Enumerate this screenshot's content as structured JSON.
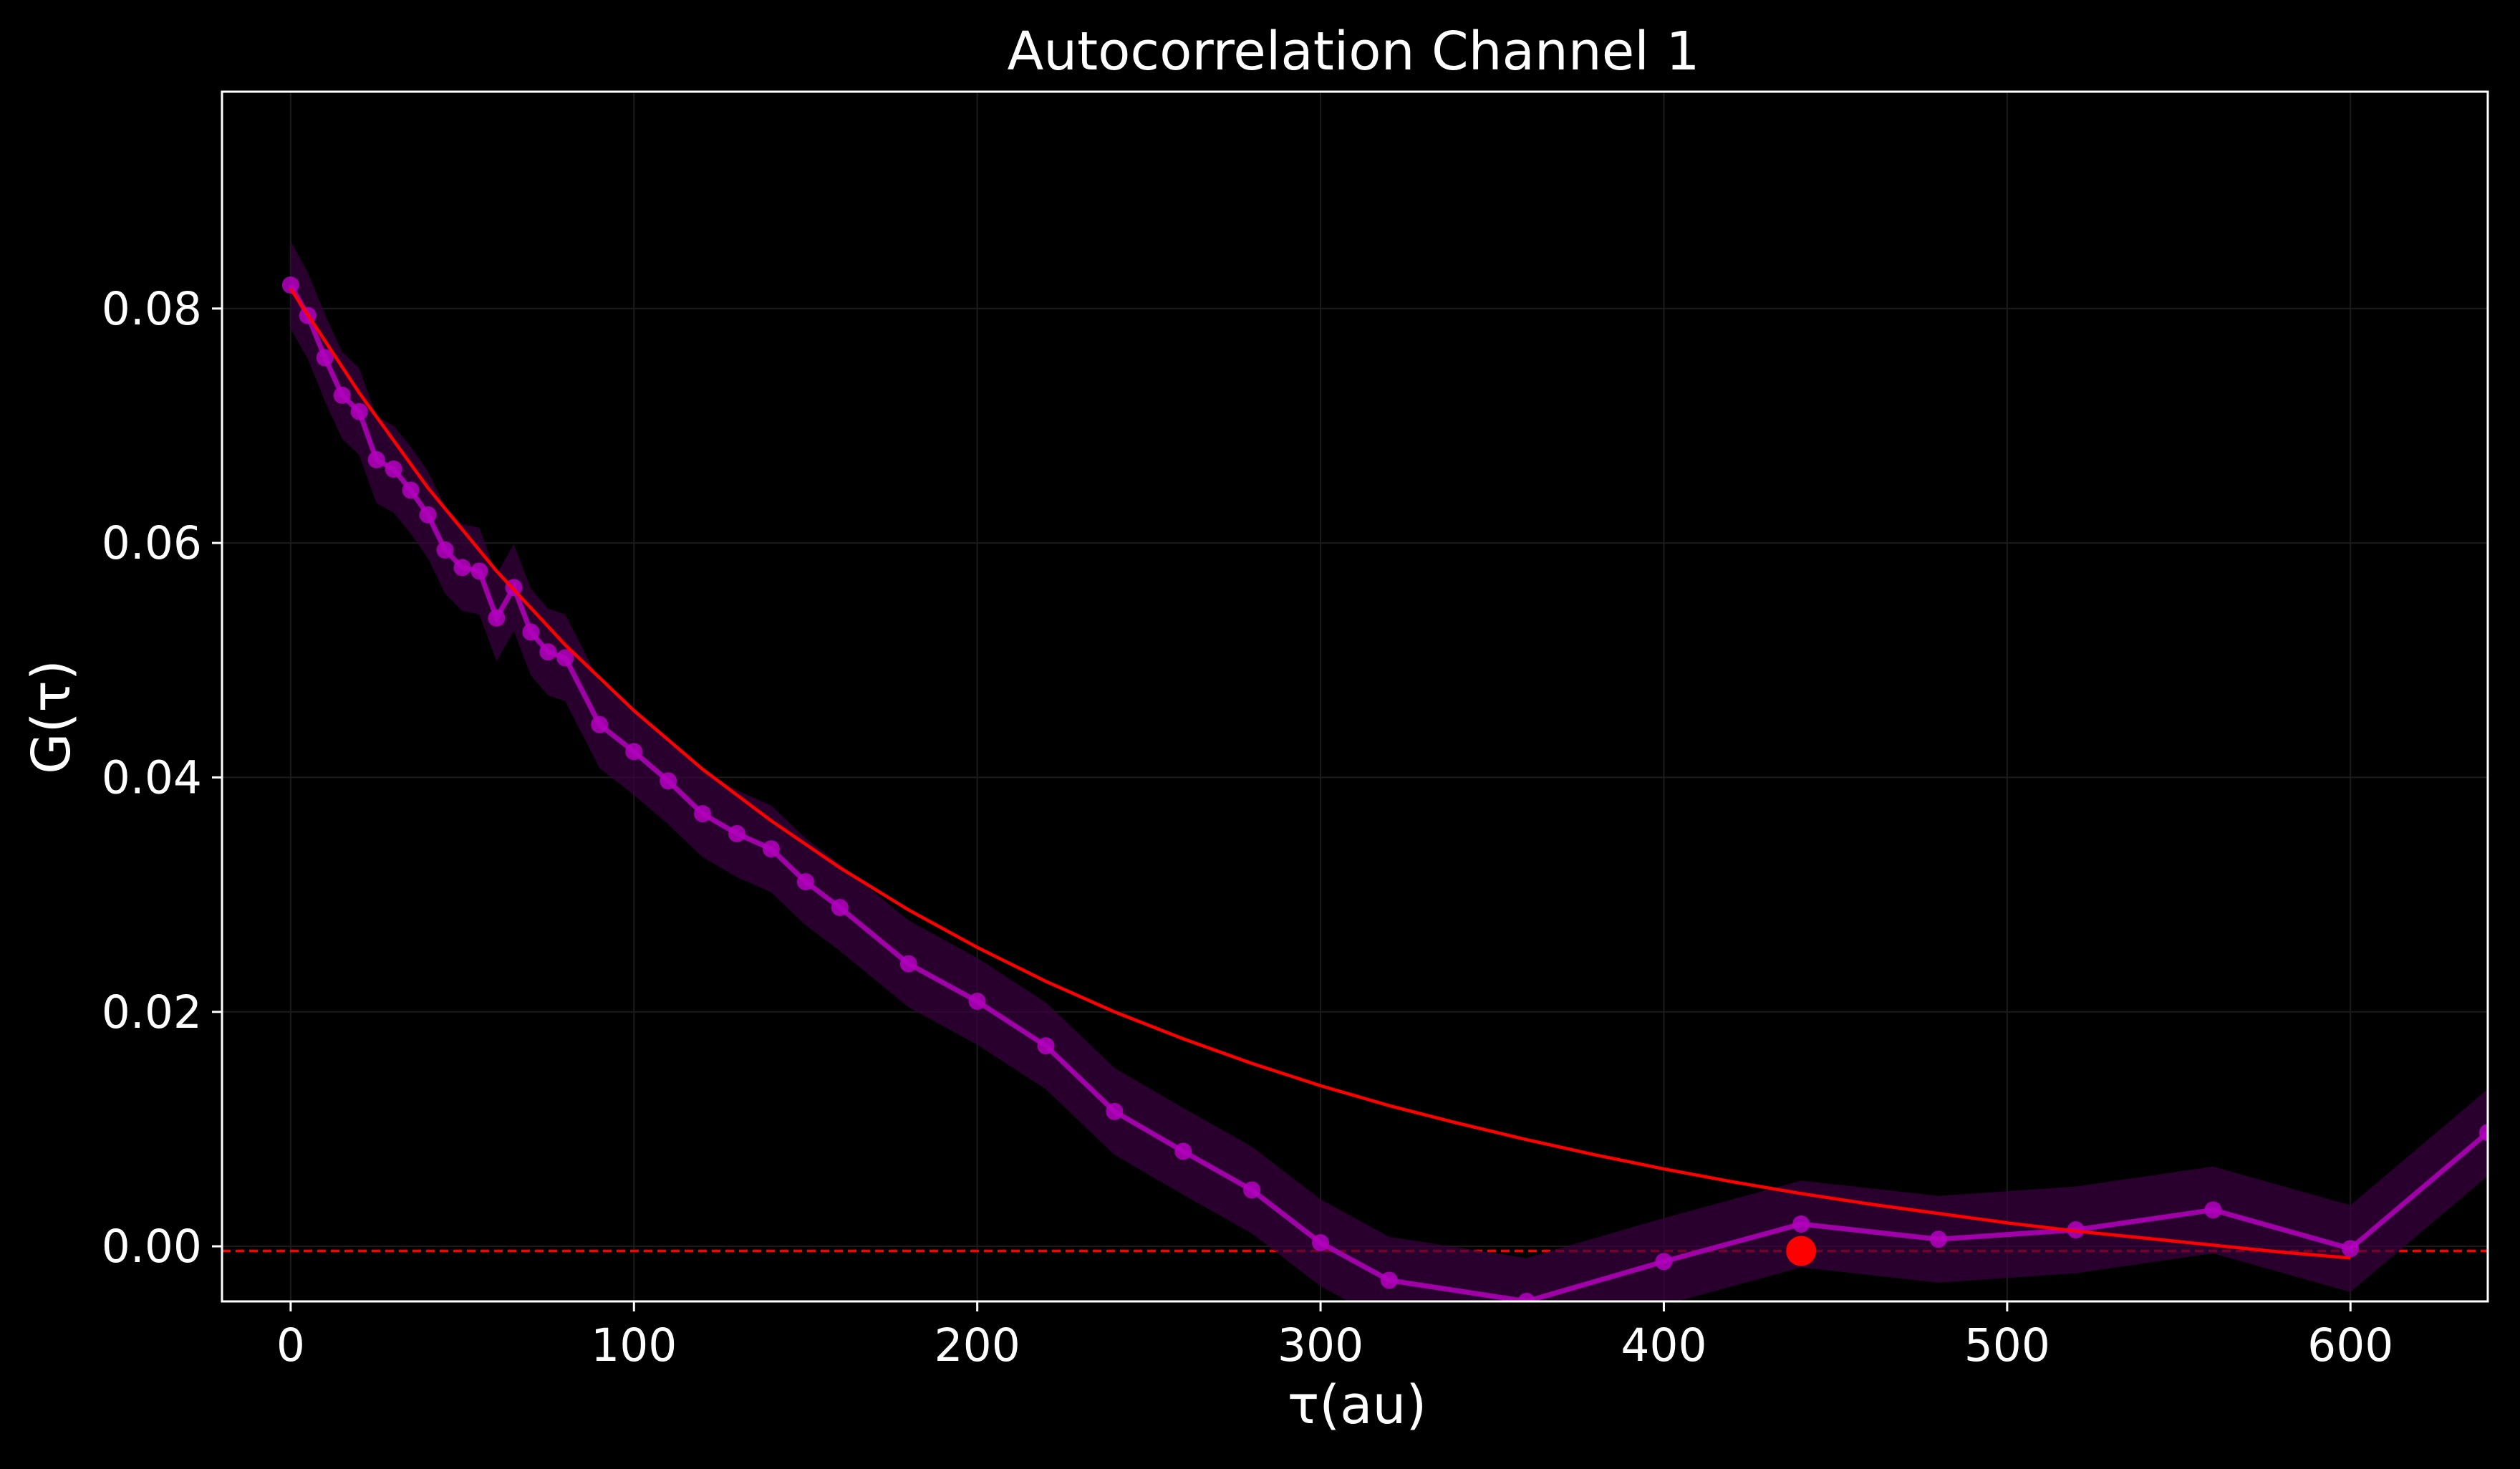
{
  "chart_data": {
    "type": "line",
    "title": "Autocorrelation Channel 1",
    "xlabel": "τ(au)",
    "ylabel": "G(τ)",
    "xlim": [
      -20,
      640
    ],
    "ylim": [
      -0.0047,
      0.0985
    ],
    "xticks": [
      0,
      100,
      200,
      300,
      400,
      500,
      600
    ],
    "yticks": [
      0.0,
      0.02,
      0.04,
      0.06,
      0.08
    ],
    "xtick_labels": [
      "0",
      "100",
      "200",
      "300",
      "400",
      "500",
      "600"
    ],
    "ytick_labels": [
      "0.00",
      "0.02",
      "0.04",
      "0.06",
      "0.08"
    ],
    "grid": true,
    "background": "#000000",
    "series": [
      {
        "kind": "data",
        "color": "#a000a8",
        "marker_color": "#b400c0",
        "band_color": "#3a0040",
        "x": [
          0,
          5,
          10,
          15,
          20,
          25,
          30,
          35,
          40,
          45,
          50,
          55,
          60,
          65,
          70,
          75,
          80,
          90,
          100,
          110,
          120,
          130,
          140,
          150,
          160,
          180,
          200,
          220,
          240,
          260,
          280,
          300,
          320,
          360,
          400,
          440,
          480,
          520,
          560,
          600,
          640
        ],
        "y": [
          0.082,
          0.0794,
          0.0758,
          0.0726,
          0.0712,
          0.0671,
          0.0663,
          0.0645,
          0.0624,
          0.0594,
          0.0579,
          0.0576,
          0.0536,
          0.0562,
          0.0524,
          0.0507,
          0.0502,
          0.0445,
          0.0422,
          0.0397,
          0.0369,
          0.0352,
          0.0339,
          0.0311,
          0.0289,
          0.0241,
          0.0209,
          0.0171,
          0.0115,
          0.0081,
          0.0048,
          0.0003,
          -0.0029,
          -0.0047,
          -0.0013,
          0.0019,
          0.0006,
          0.0014,
          0.0031,
          -0.0002,
          0.0097
        ],
        "band": 0.0037
      },
      {
        "kind": "fit",
        "color": "#ff0000",
        "x": [
          0,
          20,
          40,
          60,
          80,
          100,
          120,
          140,
          160,
          180,
          200,
          220,
          240,
          260,
          280,
          300,
          320,
          340,
          360,
          380,
          400,
          420,
          440,
          460,
          480,
          500,
          520,
          540,
          560,
          580,
          600
        ],
        "y": [
          0.0817,
          0.0728,
          0.0647,
          0.0576,
          0.0513,
          0.0457,
          0.0407,
          0.0363,
          0.0323,
          0.0287,
          0.0255,
          0.0226,
          0.02,
          0.0177,
          0.0156,
          0.0137,
          0.012,
          0.0105,
          0.0091,
          0.0078,
          0.0066,
          0.0055,
          0.0045,
          0.0036,
          0.0028,
          0.002,
          0.0013,
          0.0007,
          0.0001,
          -0.0005,
          -0.001
        ]
      }
    ],
    "reference_line": {
      "y": -0.0004,
      "color": "#ff0000",
      "style": "dashed"
    },
    "highlight_point": {
      "x": 440,
      "y": -0.0004,
      "color": "#ff0000"
    }
  }
}
